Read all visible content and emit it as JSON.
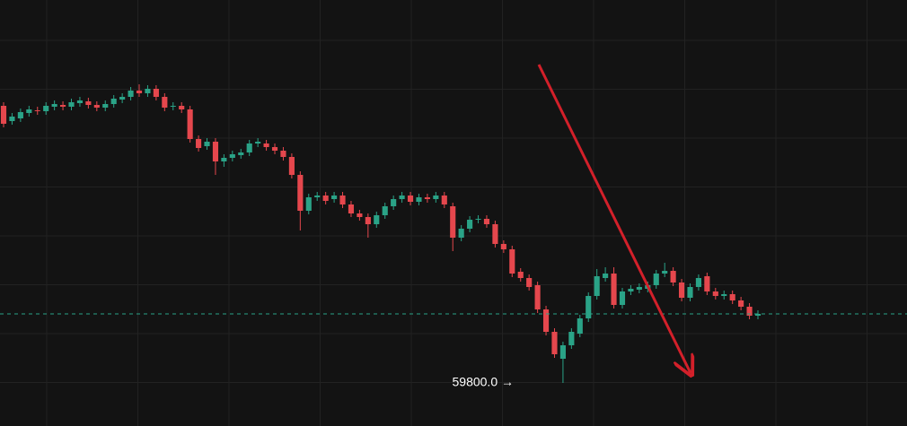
{
  "chart_data": {
    "type": "candlestick",
    "ylim": [
      59320,
      64070
    ],
    "grid": true,
    "up_color": "#2aa387",
    "down_color": "#e5474d",
    "last_price_line": true,
    "annotations": [
      {
        "text": "59800.0 →",
        "y": 59800
      }
    ],
    "open": [
      62890,
      62720,
      62750,
      62810,
      62840,
      62830,
      62880,
      62900,
      62880,
      62920,
      62940,
      62900,
      62870,
      62910,
      62960,
      62990,
      63060,
      63030,
      63080,
      62990,
      62880,
      62890,
      62850,
      62520,
      62440,
      62490,
      62270,
      62310,
      62340,
      62370,
      62470,
      62470,
      62430,
      62390,
      62320,
      62120,
      61720,
      61870,
      61890,
      61850,
      61890,
      61790,
      61690,
      61650,
      61570,
      61670,
      61770,
      61850,
      61890,
      61820,
      61870,
      61850,
      61890,
      61770,
      61420,
      61520,
      61620,
      61630,
      61570,
      61350,
      61290,
      61040,
      60970,
      60890,
      60620,
      60370,
      60070,
      60220,
      60350,
      60520,
      60770,
      60970,
      61020,
      60670,
      60820,
      60840,
      60850,
      60890,
      61020,
      61050,
      60920,
      60750,
      60870,
      60990,
      60820,
      60770,
      60790,
      60720,
      60650,
      60550
    ],
    "high": [
      62930,
      62810,
      62860,
      62890,
      62880,
      62930,
      62950,
      62940,
      62970,
      62990,
      62980,
      62940,
      62950,
      63010,
      63030,
      63100,
      63130,
      63120,
      63120,
      63030,
      62930,
      62930,
      62890,
      62560,
      62530,
      62530,
      62350,
      62390,
      62410,
      62510,
      62530,
      62510,
      62470,
      62430,
      62360,
      62160,
      61910,
      61930,
      61930,
      61930,
      61930,
      61830,
      61730,
      61690,
      61710,
      61810,
      61890,
      61930,
      61930,
      61910,
      61910,
      61930,
      61930,
      61810,
      61560,
      61660,
      61670,
      61670,
      61610,
      61390,
      61330,
      61080,
      61010,
      60930,
      60660,
      60410,
      60260,
      60410,
      60560,
      60810,
      61070,
      61090,
      61090,
      60860,
      60890,
      60910,
      60930,
      61060,
      61140,
      61090,
      60960,
      60910,
      61010,
      61030,
      60860,
      60830,
      60830,
      60760,
      60690,
      60610
    ],
    "low": [
      62650,
      62680,
      62710,
      62770,
      62790,
      62790,
      62840,
      62840,
      62840,
      62880,
      62860,
      62830,
      62830,
      62870,
      62920,
      62950,
      62990,
      62990,
      62950,
      62830,
      62840,
      62810,
      62480,
      62380,
      62400,
      62120,
      62210,
      62270,
      62300,
      62330,
      62430,
      62390,
      62350,
      62280,
      62080,
      61500,
      61680,
      61830,
      61790,
      61810,
      61750,
      61650,
      61610,
      61420,
      61530,
      61630,
      61730,
      61810,
      61780,
      61780,
      61810,
      61810,
      61750,
      61270,
      61380,
      61480,
      61580,
      61530,
      61310,
      61250,
      60980,
      60930,
      60830,
      60580,
      60330,
      60080,
      59800,
      60180,
      60310,
      60480,
      60730,
      60930,
      60630,
      60630,
      60780,
      60800,
      60810,
      60850,
      60980,
      60880,
      60710,
      60710,
      60830,
      60780,
      60730,
      60730,
      60680,
      60610,
      60510,
      60510
    ],
    "close": [
      62690,
      62770,
      62820,
      62850,
      62830,
      62890,
      62910,
      62880,
      62930,
      62950,
      62900,
      62870,
      62910,
      62970,
      62990,
      63060,
      63030,
      63080,
      62990,
      62870,
      62890,
      62850,
      62520,
      62420,
      62490,
      62270,
      62310,
      62350,
      62370,
      62470,
      62490,
      62430,
      62390,
      62320,
      62120,
      61720,
      61870,
      61890,
      61830,
      61890,
      61790,
      61690,
      61650,
      61570,
      61670,
      61770,
      61850,
      61890,
      61820,
      61870,
      61850,
      61890,
      61790,
      61420,
      61520,
      61620,
      61630,
      61570,
      61350,
      61290,
      61020,
      60970,
      60870,
      60620,
      60370,
      60120,
      60220,
      60370,
      60520,
      60770,
      60990,
      61020,
      60670,
      60820,
      60850,
      60870,
      60890,
      61020,
      61050,
      60920,
      60750,
      60870,
      60970,
      60820,
      60770,
      60790,
      60720,
      60650,
      60550,
      60570
    ]
  }
}
